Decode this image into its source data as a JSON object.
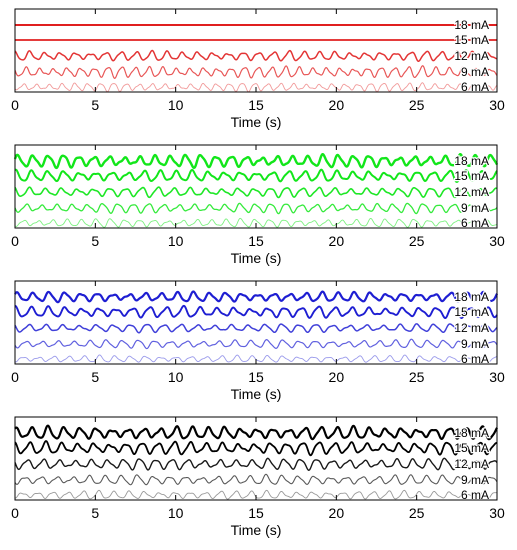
{
  "chart_data": [
    {
      "type": "line",
      "xlabel": "Time (s)",
      "xlim": [
        0,
        30
      ],
      "xticks": [
        0,
        5,
        10,
        15,
        20,
        25,
        30
      ],
      "color": "#e01f1f",
      "series": [
        {
          "name": "18 mA",
          "amplitude": 0.0,
          "period": 1.0,
          "width": 2.0,
          "opacity": 1.0
        },
        {
          "name": "15 mA",
          "amplitude": 0.0,
          "period": 1.0,
          "width": 1.8,
          "opacity": 1.0
        },
        {
          "name": "12 mA",
          "amplitude": 0.35,
          "period": 0.95,
          "width": 1.5,
          "opacity": 0.9
        },
        {
          "name": "9 mA",
          "amplitude": 0.4,
          "period": 0.85,
          "width": 1.2,
          "opacity": 0.75
        },
        {
          "name": "6 mA",
          "amplitude": 0.3,
          "period": 0.8,
          "width": 0.9,
          "opacity": 0.45
        }
      ]
    },
    {
      "type": "line",
      "xlabel": "Time (s)",
      "xlim": [
        0,
        30
      ],
      "xticks": [
        0,
        5,
        10,
        15,
        20,
        25,
        30
      ],
      "color": "#12e61a",
      "series": [
        {
          "name": "18 mA",
          "amplitude": 0.45,
          "period": 0.95,
          "width": 2.4,
          "opacity": 1.0
        },
        {
          "name": "15 mA",
          "amplitude": 0.4,
          "period": 1.0,
          "width": 2.0,
          "opacity": 1.0
        },
        {
          "name": "12 mA",
          "amplitude": 0.35,
          "period": 1.0,
          "width": 1.6,
          "opacity": 0.95
        },
        {
          "name": "9 mA",
          "amplitude": 0.35,
          "period": 0.95,
          "width": 1.3,
          "opacity": 0.85
        },
        {
          "name": "6 mA",
          "amplitude": 0.3,
          "period": 0.9,
          "width": 0.9,
          "opacity": 0.55
        }
      ]
    },
    {
      "type": "line",
      "xlabel": "Time (s)",
      "xlim": [
        0,
        30
      ],
      "xticks": [
        0,
        5,
        10,
        15,
        20,
        25,
        30
      ],
      "color": "#1e1ed2",
      "series": [
        {
          "name": "18 mA",
          "amplitude": 0.35,
          "period": 1.0,
          "width": 2.2,
          "opacity": 1.0
        },
        {
          "name": "15 mA",
          "amplitude": 0.4,
          "period": 1.05,
          "width": 1.9,
          "opacity": 1.0
        },
        {
          "name": "12 mA",
          "amplitude": 0.3,
          "period": 1.05,
          "width": 1.5,
          "opacity": 0.85
        },
        {
          "name": "9 mA",
          "amplitude": 0.3,
          "period": 1.0,
          "width": 1.2,
          "opacity": 0.7
        },
        {
          "name": "6 mA",
          "amplitude": 0.25,
          "period": 0.95,
          "width": 0.9,
          "opacity": 0.45
        }
      ]
    },
    {
      "type": "line",
      "xlabel": "Time (s)",
      "xlim": [
        0,
        30
      ],
      "xticks": [
        0,
        5,
        10,
        15,
        20,
        25,
        30
      ],
      "color": "#000000",
      "series": [
        {
          "name": "18 mA",
          "amplitude": 0.45,
          "period": 1.0,
          "width": 2.2,
          "opacity": 1.0
        },
        {
          "name": "15 mA",
          "amplitude": 0.45,
          "period": 1.0,
          "width": 1.8,
          "opacity": 1.0
        },
        {
          "name": "12 mA",
          "amplitude": 0.4,
          "period": 1.0,
          "width": 1.4,
          "opacity": 0.9
        },
        {
          "name": "9 mA",
          "amplitude": 0.35,
          "period": 1.0,
          "width": 1.1,
          "opacity": 0.65
        },
        {
          "name": "6 mA",
          "amplitude": 0.3,
          "period": 0.95,
          "width": 0.9,
          "opacity": 0.4
        }
      ]
    }
  ]
}
